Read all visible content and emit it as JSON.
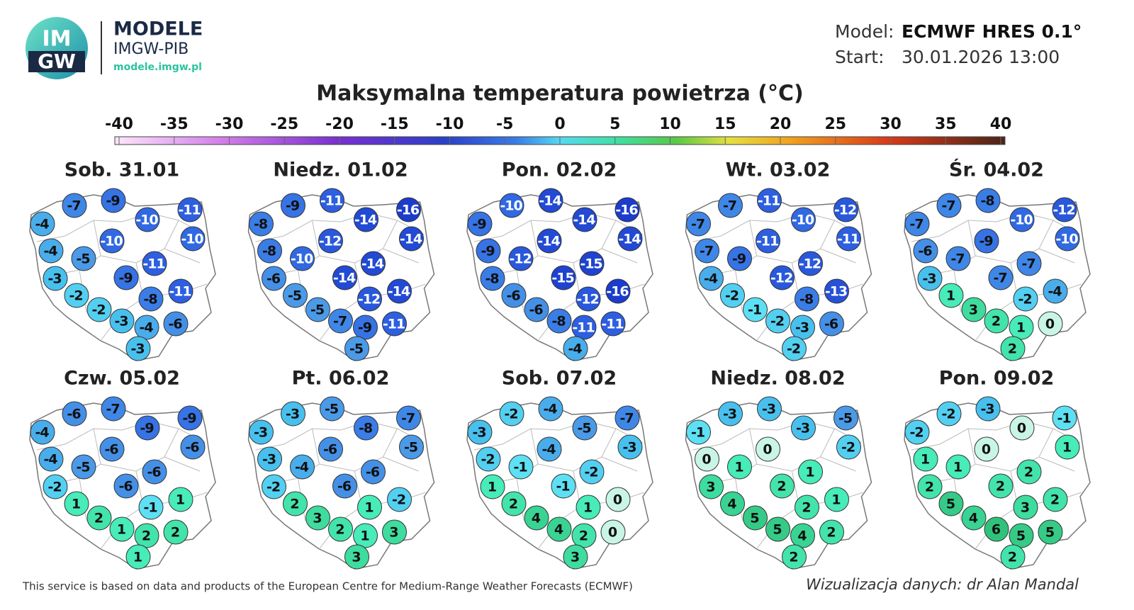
{
  "header": {
    "logo_top": "IM",
    "logo_bottom": "GW",
    "brand": "MODELE",
    "subbrand": "IMGW-PIB",
    "url": "modele.imgw.pl",
    "model_label": "Model:",
    "model": "ECMWF HRES 0.1°",
    "start_label": "Start:",
    "start": "30.01.2026 13:00"
  },
  "title": "Maksymalna temperatura powietrza (°C)",
  "scale_ticks": [
    -40,
    -35,
    -30,
    -25,
    -20,
    -15,
    -10,
    -5,
    0,
    5,
    10,
    15,
    20,
    25,
    30,
    35,
    40
  ],
  "maps": [
    {
      "day": "Sob. 31.01",
      "values": [
        -7,
        -9,
        -11,
        -4,
        -10,
        -10,
        -10,
        -4,
        -5,
        -11,
        -3,
        -9,
        -11,
        -2,
        -8,
        -2,
        -3,
        -4,
        -6,
        -3
      ]
    },
    {
      "day": "Niedz. 01.02",
      "values": [
        -9,
        -11,
        -16,
        -8,
        -14,
        -14,
        -12,
        -8,
        -10,
        -14,
        -6,
        -14,
        -14,
        -5,
        -12,
        -5,
        -7,
        -9,
        -11,
        -5
      ]
    },
    {
      "day": "Pon. 02.02",
      "values": [
        -10,
        -14,
        -16,
        -9,
        -14,
        -14,
        -14,
        -9,
        -12,
        -15,
        -8,
        -15,
        -16,
        -6,
        -12,
        -6,
        -8,
        -11,
        -11,
        -4
      ]
    },
    {
      "day": "Wt. 03.02",
      "values": [
        -7,
        -11,
        -12,
        -7,
        -10,
        -11,
        -11,
        -7,
        -9,
        -12,
        -4,
        -12,
        -13,
        -2,
        -8,
        -1,
        -2,
        -3,
        -6,
        -2
      ]
    },
    {
      "day": "Śr. 04.02",
      "values": [
        -7,
        -8,
        -12,
        -7,
        -10,
        -10,
        -9,
        -6,
        -7,
        -7,
        -3,
        -7,
        -4,
        1,
        -2,
        3,
        2,
        1,
        0,
        2
      ]
    },
    {
      "day": "Czw. 05.02",
      "values": [
        -6,
        -7,
        -9,
        -4,
        -9,
        -6,
        -6,
        -4,
        -5,
        -6,
        -2,
        -6,
        1,
        1,
        -1,
        2,
        1,
        2,
        2,
        1
      ]
    },
    {
      "day": "Pt. 06.02",
      "values": [
        -3,
        -5,
        -7,
        -3,
        -8,
        -5,
        -6,
        -3,
        -4,
        -6,
        -2,
        -6,
        -2,
        2,
        1,
        3,
        2,
        1,
        3,
        3
      ]
    },
    {
      "day": "Sob. 07.02",
      "values": [
        -2,
        -4,
        -7,
        -3,
        -5,
        -3,
        -4,
        -2,
        -1,
        -2,
        1,
        -1,
        0,
        2,
        1,
        4,
        4,
        2,
        0,
        3
      ]
    },
    {
      "day": "Niedz. 08.02",
      "values": [
        -3,
        -3,
        -5,
        -1,
        -3,
        -2,
        0,
        0,
        1,
        1,
        3,
        2,
        1,
        4,
        2,
        5,
        5,
        4,
        2,
        2
      ]
    },
    {
      "day": "Pon. 09.02",
      "values": [
        -2,
        -3,
        -1,
        -2,
        0,
        1,
        0,
        1,
        1,
        2,
        2,
        2,
        2,
        5,
        3,
        4,
        6,
        5,
        5,
        2
      ]
    }
  ],
  "footer": {
    "source": "This service is based on data and products of the European Centre for Medium-Range Weather Forecasts (ECMWF)",
    "credit": "Wizualizacja danych: dr Alan Mandal"
  }
}
